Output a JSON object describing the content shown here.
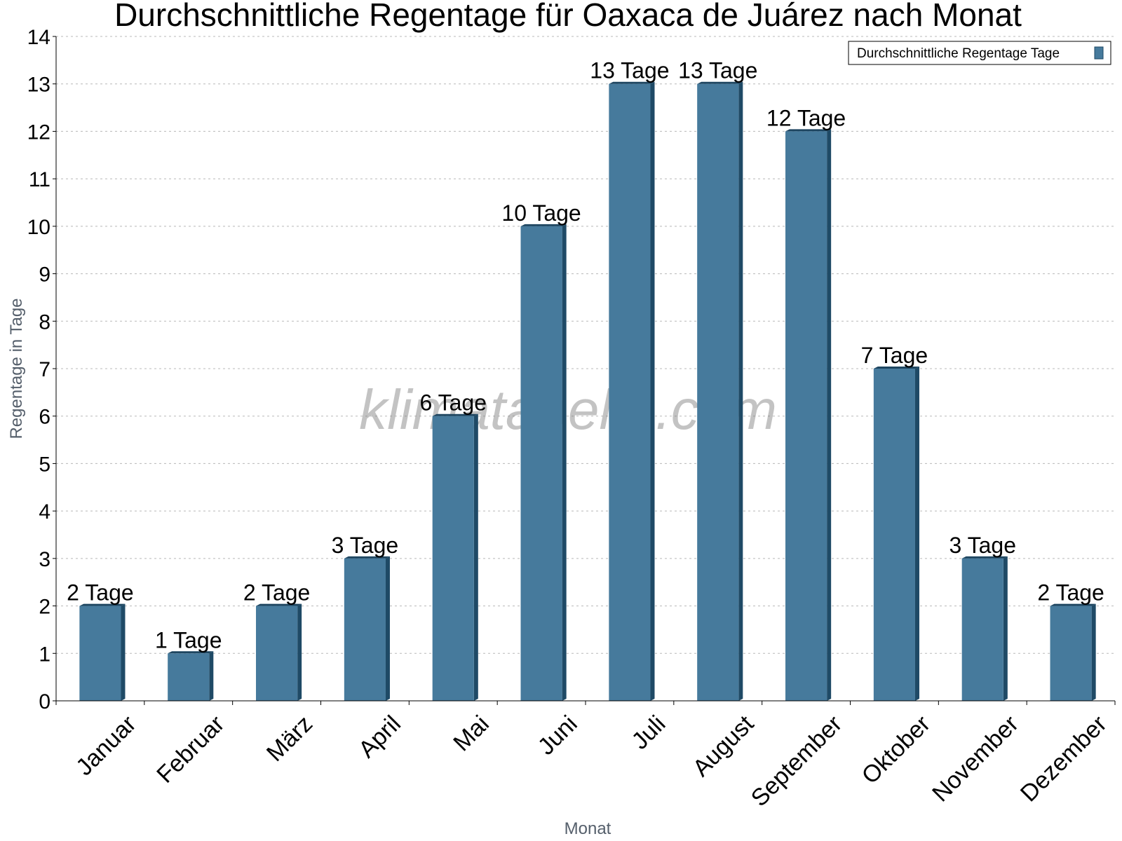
{
  "chart_data": {
    "type": "bar",
    "title": "Durchschnittliche Regentage für Oaxaca de Juárez nach Monat",
    "xlabel": "Monat",
    "ylabel": "Regentage in Tage",
    "categories": [
      "Januar",
      "Februar",
      "März",
      "April",
      "Mai",
      "Juni",
      "Juli",
      "August",
      "September",
      "Oktober",
      "November",
      "Dezember"
    ],
    "series": [
      {
        "name": "Durchschnittliche Regentage Tage",
        "values": [
          2,
          1,
          2,
          3,
          6,
          10,
          13,
          13,
          12,
          7,
          3,
          2
        ],
        "labels": [
          "2 Tage",
          "1 Tage",
          "2 Tage",
          "3 Tage",
          "6 Tage",
          "10 Tage",
          "13 Tage",
          "13 Tage",
          "12 Tage",
          "7 Tage",
          "3 Tage",
          "2 Tage"
        ],
        "color": "#467a9c"
      }
    ],
    "ylim": [
      0,
      14
    ],
    "yticks": [
      0,
      1,
      2,
      3,
      4,
      5,
      6,
      7,
      8,
      9,
      10,
      11,
      12,
      13,
      14
    ],
    "grid": true,
    "legend_position": "top-right",
    "watermark": "klimatabelle.com"
  }
}
